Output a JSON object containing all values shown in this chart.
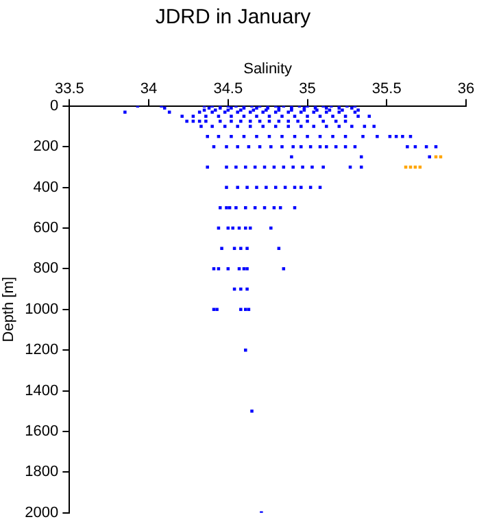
{
  "chart_data": {
    "type": "scatter",
    "title": "JDRD in January",
    "xlabel": "Salinity",
    "ylabel": "Depth [m]",
    "xlim": [
      33.5,
      36
    ],
    "xticks": [
      33.5,
      34,
      34.5,
      35,
      35.5,
      36
    ],
    "ylim": [
      2000,
      0
    ],
    "yticks": [
      0,
      200,
      400,
      600,
      800,
      1000,
      1200,
      1400,
      1600,
      1800,
      2000
    ],
    "grid": false,
    "marker": "square",
    "legend": false,
    "series": [
      {
        "color": "#0000ff",
        "x": [
          33.93,
          34.08,
          34.35,
          34.4,
          34.45,
          34.5,
          34.55,
          34.6,
          34.65,
          34.7,
          34.75,
          34.8,
          34.85,
          34.9,
          34.95,
          35.0,
          35.05,
          35.1,
          35.15,
          35.2,
          35.25,
          35.3,
          34.1,
          34.38,
          34.45,
          34.52,
          34.6,
          34.68,
          34.75,
          34.82,
          34.9,
          34.98,
          35.05,
          35.12,
          35.2,
          35.28,
          34.35,
          34.42,
          34.5,
          34.58,
          34.66,
          34.74,
          34.82,
          34.9,
          34.98,
          35.06,
          35.14,
          35.22,
          35.32,
          33.85,
          34.13,
          34.32,
          34.4,
          34.48,
          34.56,
          34.64,
          34.72,
          34.8,
          34.88,
          34.96,
          35.04,
          35.12,
          35.2,
          35.3,
          34.21,
          34.28,
          34.36,
          34.44,
          34.52,
          34.6,
          34.68,
          34.76,
          34.84,
          34.92,
          35.0,
          35.08,
          35.16,
          35.24,
          35.32,
          35.39,
          34.24,
          34.28,
          34.32,
          34.36,
          34.45,
          34.52,
          34.58,
          34.64,
          34.7,
          34.76,
          34.82,
          34.88,
          34.94,
          35.0,
          35.1,
          35.18,
          35.24,
          34.33,
          34.4,
          34.48,
          34.56,
          34.64,
          34.72,
          34.8,
          34.88,
          34.96,
          35.04,
          35.12,
          35.2,
          35.28,
          35.36,
          35.42,
          34.37,
          34.44,
          34.52,
          34.6,
          34.68,
          34.76,
          34.84,
          34.92,
          35.0,
          35.08,
          35.16,
          35.24,
          35.35,
          35.44,
          35.52,
          35.56,
          35.6,
          35.65,
          34.41,
          34.49,
          34.56,
          34.63,
          34.7,
          34.77,
          34.84,
          34.91,
          34.96,
          35.02,
          35.08,
          35.12,
          35.18,
          35.24,
          35.3,
          35.63,
          35.68,
          35.75,
          35.81,
          34.9,
          35.34,
          35.77,
          34.37,
          34.49,
          34.55,
          34.61,
          34.67,
          34.73,
          34.79,
          34.85,
          34.91,
          34.97,
          35.03,
          35.1,
          35.27,
          35.34,
          34.49,
          34.56,
          34.62,
          34.68,
          34.74,
          34.8,
          34.86,
          34.92,
          34.96,
          35.02,
          35.08,
          34.45,
          34.49,
          34.51,
          34.55,
          34.61,
          34.67,
          34.73,
          34.79,
          34.83,
          34.92,
          34.44,
          34.5,
          34.53,
          34.57,
          34.61,
          34.64,
          34.77,
          34.46,
          34.54,
          34.58,
          34.62,
          34.82,
          34.41,
          34.44,
          34.5,
          34.57,
          34.6,
          34.62,
          34.85,
          34.54,
          34.58,
          34.62,
          34.41,
          34.43,
          34.58,
          34.61,
          34.63,
          34.61,
          34.65,
          34.71
        ],
        "values": [
          0,
          0,
          0,
          0,
          0,
          0,
          0,
          0,
          0,
          0,
          0,
          0,
          0,
          0,
          0,
          0,
          0,
          0,
          0,
          0,
          0,
          0,
          10,
          10,
          10,
          10,
          10,
          10,
          10,
          10,
          10,
          10,
          10,
          10,
          10,
          10,
          20,
          20,
          20,
          20,
          20,
          20,
          20,
          20,
          20,
          20,
          20,
          20,
          20,
          30,
          30,
          30,
          30,
          30,
          30,
          30,
          30,
          30,
          30,
          30,
          30,
          30,
          30,
          30,
          50,
          50,
          50,
          50,
          50,
          50,
          50,
          50,
          50,
          50,
          50,
          50,
          50,
          50,
          50,
          50,
          75,
          75,
          75,
          75,
          75,
          75,
          75,
          75,
          75,
          75,
          75,
          75,
          75,
          75,
          75,
          75,
          75,
          100,
          100,
          100,
          100,
          100,
          100,
          100,
          100,
          100,
          100,
          100,
          100,
          100,
          100,
          100,
          150,
          150,
          150,
          150,
          150,
          150,
          150,
          150,
          150,
          150,
          150,
          150,
          150,
          150,
          150,
          150,
          150,
          150,
          200,
          200,
          200,
          200,
          200,
          200,
          200,
          200,
          200,
          200,
          200,
          200,
          200,
          200,
          200,
          200,
          200,
          200,
          200,
          250,
          250,
          250,
          300,
          300,
          300,
          300,
          300,
          300,
          300,
          300,
          300,
          300,
          300,
          300,
          300,
          300,
          400,
          400,
          400,
          400,
          400,
          400,
          400,
          400,
          400,
          400,
          400,
          500,
          500,
          500,
          500,
          500,
          500,
          500,
          500,
          500,
          500,
          600,
          600,
          600,
          600,
          600,
          600,
          600,
          700,
          700,
          700,
          700,
          700,
          800,
          800,
          800,
          800,
          800,
          800,
          800,
          900,
          900,
          900,
          1000,
          1000,
          1000,
          1000,
          1000,
          1200,
          1500,
          2000
        ]
      },
      {
        "color": "#ffa500",
        "x": [
          35.81,
          35.84,
          35.62,
          35.65,
          35.68,
          35.71
        ],
        "values": [
          250,
          250,
          300,
          300,
          300,
          300
        ]
      }
    ]
  }
}
